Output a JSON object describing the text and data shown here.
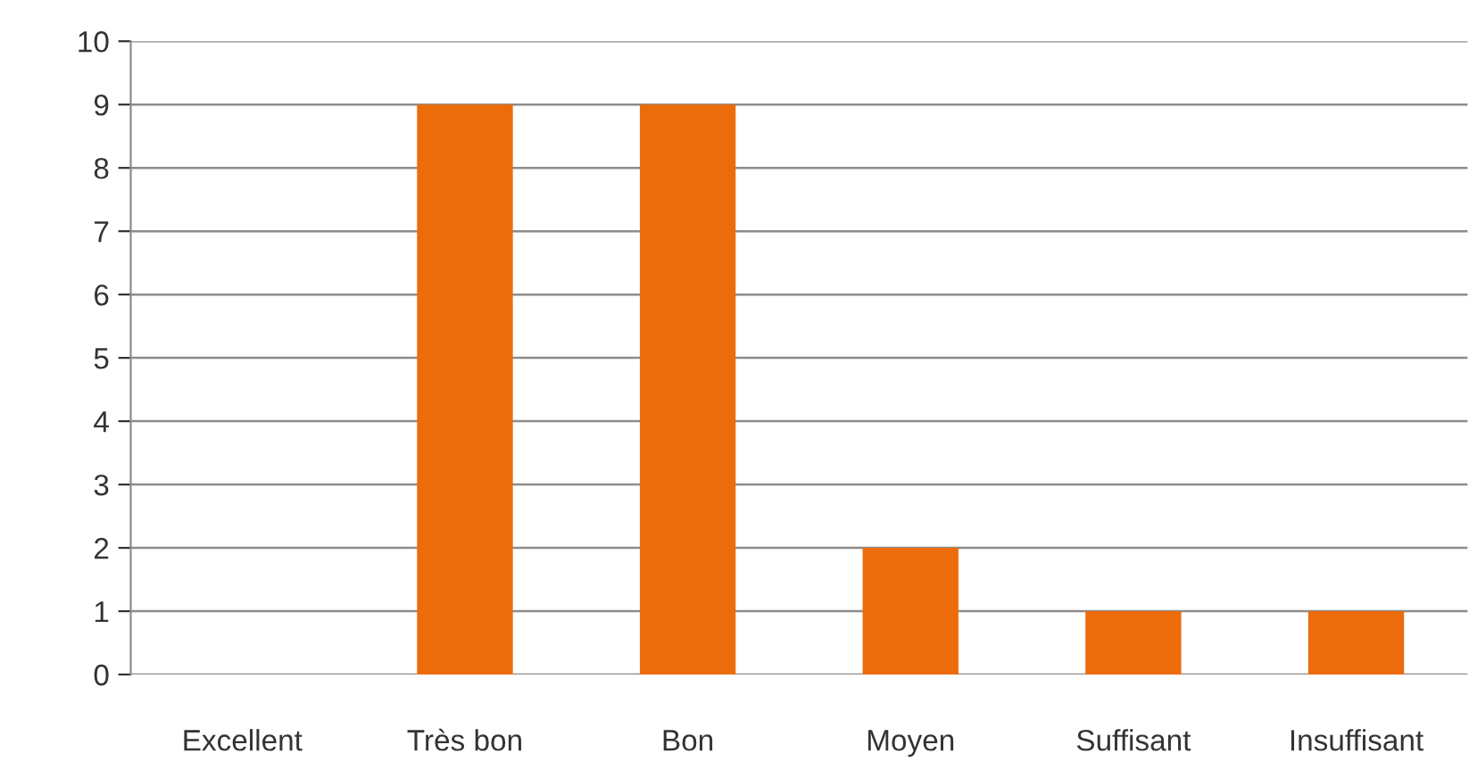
{
  "chart_data": {
    "type": "bar",
    "categories": [
      "Excellent",
      "Très bon",
      "Bon",
      "Moyen",
      "Suffisant",
      "Insuffisant"
    ],
    "values": [
      0,
      9,
      9,
      2,
      1,
      1
    ],
    "color": "#ec6c0b",
    "ylim": [
      0,
      10
    ],
    "yticks": [
      0,
      1,
      2,
      3,
      4,
      5,
      6,
      7,
      8,
      9,
      10
    ],
    "grid": "y",
    "legend": false
  }
}
